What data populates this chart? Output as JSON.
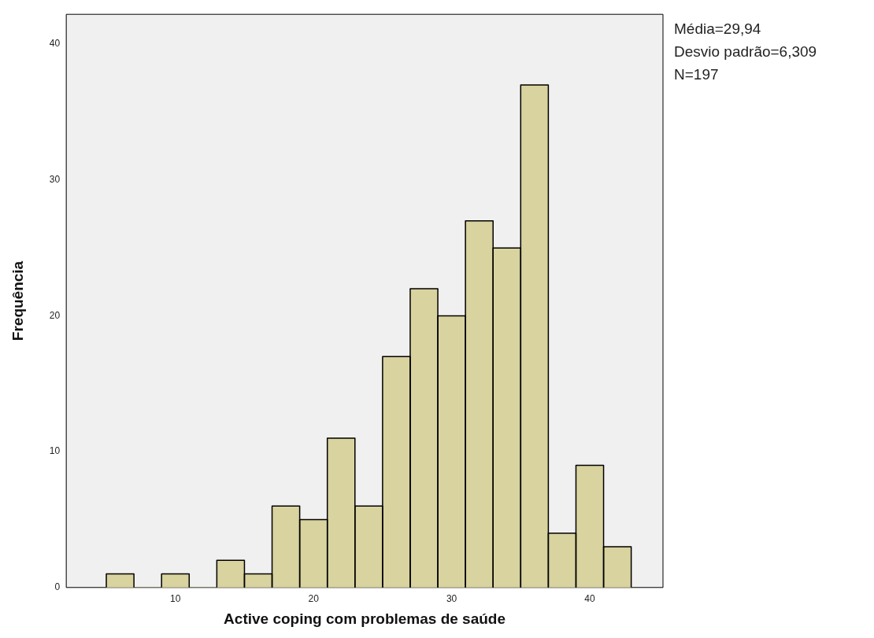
{
  "chart_data": {
    "type": "histogram",
    "xlabel": "Active coping com problemas de saúde",
    "ylabel": "Frequência",
    "bins": [
      5,
      7,
      9,
      11,
      13,
      15,
      17,
      19,
      21,
      23,
      25,
      27,
      29,
      31,
      33,
      35,
      37,
      39,
      41,
      43
    ],
    "values": [
      1,
      0,
      1,
      0,
      2,
      1,
      6,
      5,
      11,
      6,
      17,
      22,
      20,
      27,
      25,
      37,
      4,
      9,
      3
    ],
    "color": "#d8d39f",
    "xlim": [
      2.1,
      45.3
    ],
    "xticks": [
      10,
      20,
      30,
      40
    ],
    "ylim": [
      0,
      42.2
    ],
    "yticks": [
      0,
      10,
      20,
      30,
      40
    ],
    "grid": false,
    "legend": false,
    "annotations": [
      "Média=29,94",
      "Desvio padrão=6,309",
      "N=197"
    ]
  }
}
